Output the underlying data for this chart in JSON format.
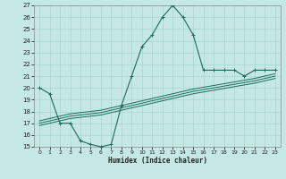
{
  "xlabel": "Humidex (Indice chaleur)",
  "bg_color": "#c5e8e5",
  "line_color": "#1a6b5a",
  "grid_color": "#a8d4cf",
  "humidex_values": [
    0,
    1,
    2,
    3,
    4,
    5,
    6,
    7,
    8,
    9,
    10,
    11,
    12,
    13,
    14,
    15,
    16,
    17,
    18,
    19,
    20,
    21,
    22,
    23
  ],
  "temp_main": [
    20,
    19.5,
    17,
    17,
    15.5,
    15.2,
    15.0,
    15.2,
    18.5,
    21.0,
    23.5,
    24.5,
    26.0,
    27.0,
    26.0,
    24.5,
    21.5,
    21.5,
    21.5,
    21.5,
    21.0,
    21.5,
    21.5,
    21.5
  ],
  "temp_line1": [
    16.8,
    17.0,
    17.2,
    17.4,
    17.5,
    17.6,
    17.7,
    17.9,
    18.1,
    18.3,
    18.5,
    18.7,
    18.9,
    19.1,
    19.3,
    19.5,
    19.65,
    19.8,
    19.95,
    20.1,
    20.25,
    20.4,
    20.6,
    20.8
  ],
  "temp_line2": [
    17.0,
    17.2,
    17.4,
    17.6,
    17.7,
    17.8,
    17.9,
    18.1,
    18.3,
    18.5,
    18.7,
    18.9,
    19.1,
    19.3,
    19.5,
    19.7,
    19.85,
    20.0,
    20.15,
    20.3,
    20.45,
    20.6,
    20.8,
    21.0
  ],
  "temp_line3": [
    17.2,
    17.4,
    17.6,
    17.8,
    17.9,
    18.0,
    18.1,
    18.3,
    18.5,
    18.7,
    18.9,
    19.1,
    19.3,
    19.5,
    19.7,
    19.9,
    20.05,
    20.2,
    20.35,
    20.5,
    20.65,
    20.8,
    21.0,
    21.2
  ],
  "ylim": [
    15,
    27
  ],
  "xlim": [
    -0.5,
    23.5
  ],
  "yticks": [
    15,
    16,
    17,
    18,
    19,
    20,
    21,
    22,
    23,
    24,
    25,
    26,
    27
  ],
  "xticks": [
    0,
    1,
    2,
    3,
    4,
    5,
    6,
    7,
    8,
    9,
    10,
    11,
    12,
    13,
    14,
    15,
    16,
    17,
    18,
    19,
    20,
    21,
    22,
    23
  ]
}
